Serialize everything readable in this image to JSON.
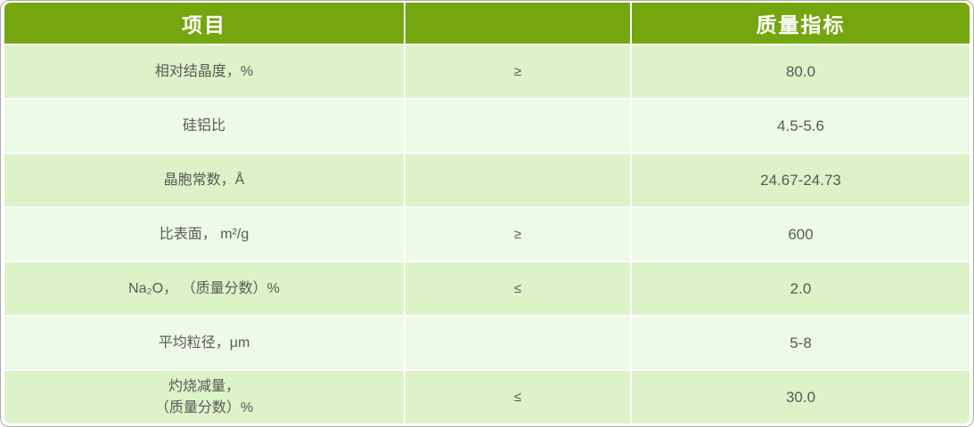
{
  "table": {
    "title_semantic": "product-quality-spec-table",
    "columns": [
      {
        "label": "项目"
      },
      {
        "label": ""
      },
      {
        "label": "质量指标"
      }
    ],
    "rows": [
      {
        "item": "相对结晶度，%",
        "relation": "≥",
        "value": "80.0"
      },
      {
        "item": "硅铝比",
        "relation": "",
        "value": "4.5-5.6"
      },
      {
        "item": "晶胞常数，Å",
        "relation": "",
        "value": "24.67-24.73"
      },
      {
        "item": "比表面， m²/g",
        "relation": "≥",
        "value": "600"
      },
      {
        "item": "Na₂O， （质量分数）%",
        "relation": "≤",
        "value": "2.0"
      },
      {
        "item": "平均粒径，μm",
        "relation": "",
        "value": "5-8"
      },
      {
        "item": "灼烧减量，\n（质量分数）%",
        "relation": "≤",
        "value": "30.0"
      }
    ]
  },
  "colors": {
    "header_green": "#74a60d",
    "row_odd": "#dcf3c8",
    "row_even": "#edfae5",
    "frame_border": "#a9a9a9",
    "body_text": "#595959",
    "header_text": "#ffffff"
  }
}
